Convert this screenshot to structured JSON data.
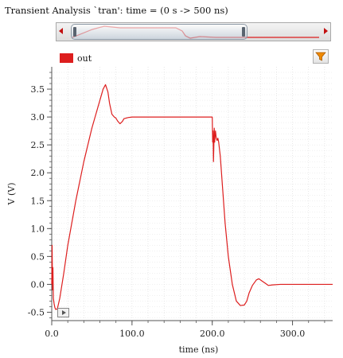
{
  "window": {
    "title": "Transient Analysis `tran': time = (0 s -> 500 ns)"
  },
  "legend": {
    "items": [
      {
        "label": "out",
        "color": "#dd1e1e"
      }
    ]
  },
  "toolbar": {
    "filter_icon": "funnel-icon",
    "play_icon": "play-icon"
  },
  "chart_data": {
    "type": "line",
    "title": "",
    "xlabel": "time (ns)",
    "ylabel": "V (V)",
    "xlim": [
      0,
      350
    ],
    "ylim": [
      -0.65,
      3.9
    ],
    "xticks": [
      0,
      100,
      200,
      300
    ],
    "xtick_labels": [
      "0.0",
      "100.0",
      "200.0",
      "300.0"
    ],
    "yticks": [
      -0.5,
      0,
      0.5,
      1,
      1.5,
      2,
      2.5,
      3,
      3.5
    ],
    "ytick_labels": [
      "-0.5",
      "0.0",
      "0.5",
      "1.0",
      "1.5",
      "2.0",
      "2.5",
      "3.0",
      "3.5"
    ],
    "grid": true,
    "legend_position": "top-left",
    "series": [
      {
        "name": "out",
        "color": "#dd1e1e",
        "x": [
          0,
          0.5,
          1,
          1.5,
          2,
          3,
          4,
          5,
          7,
          10,
          15,
          20,
          30,
          40,
          50,
          60,
          64,
          67,
          70,
          72,
          75,
          78,
          80,
          82,
          85,
          88,
          90,
          95,
          100,
          120,
          150,
          180,
          199,
          200,
          200.5,
          201,
          201.5,
          202,
          202.5,
          203,
          204,
          205,
          206,
          207,
          208,
          210,
          213,
          216,
          220,
          225,
          230,
          235,
          240,
          243,
          246,
          250,
          255,
          258,
          262,
          266,
          270,
          275,
          285,
          300,
          350
        ],
        "y": [
          0.0,
          0.7,
          -0.1,
          0.3,
          -0.25,
          -0.35,
          -0.42,
          -0.45,
          -0.44,
          -0.25,
          0.2,
          0.7,
          1.5,
          2.2,
          2.8,
          3.3,
          3.5,
          3.58,
          3.45,
          3.25,
          3.05,
          3.0,
          2.98,
          2.93,
          2.88,
          2.92,
          2.97,
          2.99,
          3.0,
          3.0,
          3.0,
          3.0,
          3.0,
          3.0,
          2.55,
          2.75,
          2.2,
          2.5,
          2.8,
          2.55,
          2.75,
          2.62,
          2.58,
          2.62,
          2.55,
          2.3,
          1.7,
          1.1,
          0.5,
          0.0,
          -0.3,
          -0.38,
          -0.37,
          -0.3,
          -0.15,
          -0.02,
          0.08,
          0.1,
          0.06,
          0.02,
          -0.02,
          -0.01,
          0.0,
          0.0,
          0.0
        ]
      }
    ]
  }
}
